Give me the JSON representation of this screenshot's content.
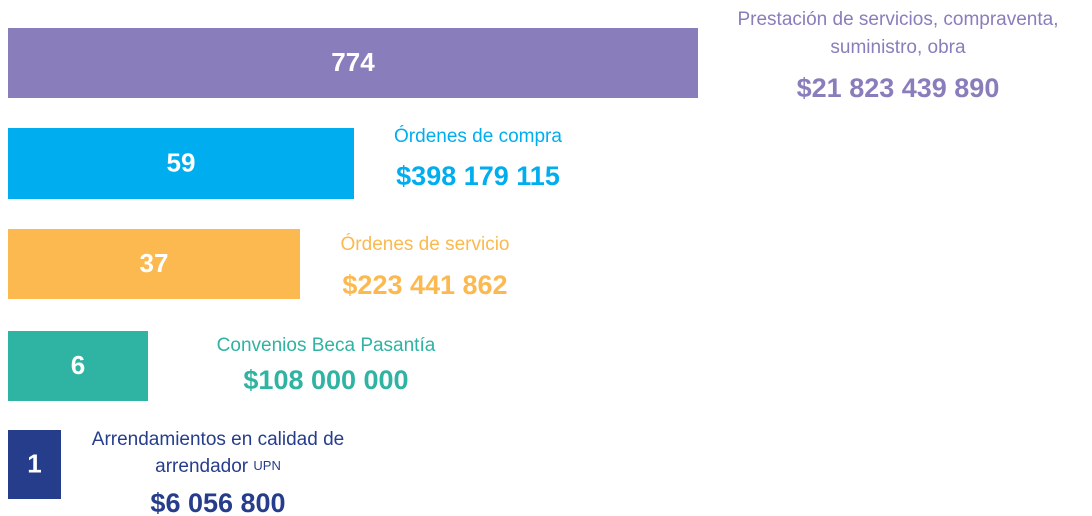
{
  "items": [
    {
      "count": "774",
      "label_lines": [
        "Prestación de servicios, compraventa,",
        "suministro, obra"
      ],
      "amount": "$21 823 439 890"
    },
    {
      "count": "59",
      "label_lines": [
        "Órdenes de compra"
      ],
      "amount": "$398 179 115"
    },
    {
      "count": "37",
      "label_lines": [
        "Órdenes de servicio"
      ],
      "amount": "$223 441 862"
    },
    {
      "count": "6",
      "label_lines": [
        "Convenios Beca Pasantía"
      ],
      "amount": "$108 000 000"
    },
    {
      "count": "1",
      "label_lines": [
        "Arrendamientos en calidad de",
        "arrendador"
      ],
      "label_suffix": "UPN",
      "amount": "$6 056 800"
    }
  ]
}
